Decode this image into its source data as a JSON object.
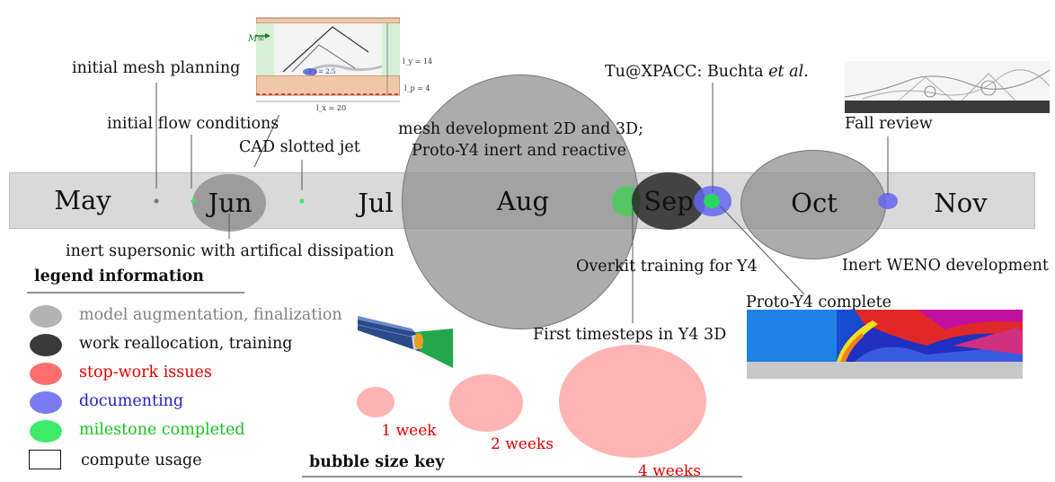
{
  "months": [
    "May",
    "Jun",
    "Jul",
    "Aug",
    "Sep",
    "Oct",
    "Nov"
  ],
  "annotations": {
    "initial_mesh_planning": "initial mesh planning",
    "initial_flow_conditions": "initial flow conditions",
    "cad_slotted_jet": "CAD slotted jet",
    "inert_supersonic": "inert supersonic with artifical dissipation",
    "mesh_development_line1": "mesh development 2D and 3D;",
    "mesh_development_line2": "Proto-Y4 inert and reactive",
    "tu_xpacc_prefix": "Tu@XPACC: Buchta ",
    "tu_xpacc_italic": "et al.",
    "fall_review": "Fall review",
    "overkit_training": "Overkit training for Y4",
    "inert_weno": "Inert WENO development",
    "proto_y4_complete": "Proto-Y4 complete",
    "first_timesteps": "First timesteps in Y4 3D"
  },
  "inset_labels": {
    "m_infinity": "M∞",
    "ly": "l_y = 14",
    "lp": "l_p = 4",
    "lx": "l_x = 20",
    "jet": "l_j = 2.5"
  },
  "legend": {
    "title": "legend information",
    "items": [
      {
        "label": "model augmentation, finalization",
        "color": "#b3b3b3",
        "text_color": "#808080"
      },
      {
        "label": "work reallocation, training",
        "color": "#3a3a3a",
        "text_color": "#111111"
      },
      {
        "label": "stop-work issues",
        "color": "#ff6e6e",
        "text_color": "#e00000"
      },
      {
        "label": "documenting",
        "color": "#7b7bf0",
        "text_color": "#2020c0"
      },
      {
        "label": "milestone completed",
        "color": "#3dea6a",
        "text_color": "#19c020"
      },
      {
        "label": "compute usage",
        "color": "#ffffff",
        "text_color": "#111111"
      }
    ]
  },
  "bubble_key": {
    "title": "bubble size key",
    "items": [
      "1 week",
      "2 weeks",
      "4 weeks"
    ],
    "color": "#ffb3b3"
  }
}
